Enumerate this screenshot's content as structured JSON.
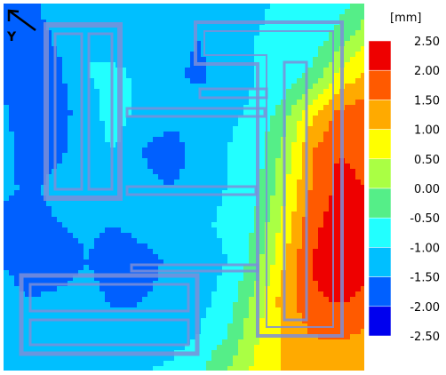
{
  "chart_data": {
    "type": "heatmap",
    "title": "",
    "unit_label": "[mm]",
    "axis_indicator": "Y",
    "colorbar": {
      "ticks": [
        2.5,
        2.0,
        1.5,
        1.0,
        0.5,
        0.0,
        -0.5,
        -1.0,
        -1.5,
        -2.0,
        -2.5
      ],
      "tick_labels": [
        "2.50",
        "2.00",
        "1.50",
        "1.00",
        "0.50",
        "0.00",
        "-0.50",
        "-1.00",
        "-1.50",
        "-2.00",
        "-2.50"
      ],
      "colors_top_to_bottom": [
        "#ee0000",
        "#ff5a00",
        "#ffaa00",
        "#ffff00",
        "#aaff44",
        "#55ee88",
        "#22ffff",
        "#00bfff",
        "#0060ff",
        "#0000ee"
      ],
      "placement": "right"
    },
    "values_grid": [
      [
        -1.5,
        -1.6,
        -1.2,
        -1.1,
        -1.0,
        -1.1,
        -1.2,
        -1.3,
        -1.2,
        -1.1,
        -0.9,
        -0.9,
        -0.7,
        -0.3
      ],
      [
        -1.7,
        -1.8,
        -1.4,
        -1.0,
        -1.2,
        -1.1,
        -1.4,
        -1.5,
        -1.2,
        -1.0,
        -0.9,
        -0.8,
        -0.3,
        0.4
      ],
      [
        -1.6,
        -1.8,
        -1.6,
        -1.0,
        -0.9,
        -1.1,
        -1.4,
        -1.6,
        -1.3,
        -1.0,
        -0.8,
        -0.4,
        0.6,
        1.2
      ],
      [
        -1.4,
        -1.9,
        -1.7,
        -1.2,
        -0.8,
        -1.2,
        -1.3,
        -1.2,
        -1.1,
        -0.9,
        -0.3,
        0.8,
        1.6,
        1.8
      ],
      [
        -1.3,
        -1.8,
        -1.6,
        -1.1,
        -1.0,
        -1.5,
        -1.8,
        -1.3,
        -1.0,
        -0.8,
        0.1,
        1.4,
        2.0,
        1.9
      ],
      [
        -1.4,
        -1.6,
        -1.3,
        -1.1,
        -1.2,
        -1.4,
        -1.5,
        -1.2,
        -1.0,
        -0.7,
        0.3,
        1.5,
        2.1,
        2.0
      ],
      [
        -1.6,
        -1.7,
        -1.5,
        -1.4,
        -1.5,
        -1.3,
        -1.2,
        -1.1,
        -0.9,
        -0.5,
        0.6,
        1.8,
        2.3,
        2.1
      ],
      [
        -1.5,
        -1.9,
        -1.8,
        -1.5,
        -1.8,
        -1.7,
        -1.4,
        -1.3,
        -1.0,
        -0.3,
        0.9,
        2.0,
        2.4,
        2.2
      ],
      [
        -1.3,
        -1.5,
        -1.4,
        -1.3,
        -1.6,
        -1.5,
        -1.4,
        -1.2,
        -0.8,
        0.1,
        1.2,
        1.9,
        2.1,
        1.9
      ],
      [
        -1.1,
        -1.2,
        -1.3,
        -1.2,
        -1.3,
        -1.4,
        -1.2,
        -1.0,
        -0.5,
        0.4,
        1.0,
        1.5,
        1.6,
        1.4
      ],
      [
        -1.0,
        -1.1,
        -1.1,
        -1.0,
        -1.1,
        -1.0,
        -0.9,
        -0.6,
        0.0,
        0.6,
        1.0,
        1.2,
        1.1,
        1.0
      ]
    ],
    "traces": {
      "color": "#7d8ed8"
    }
  }
}
